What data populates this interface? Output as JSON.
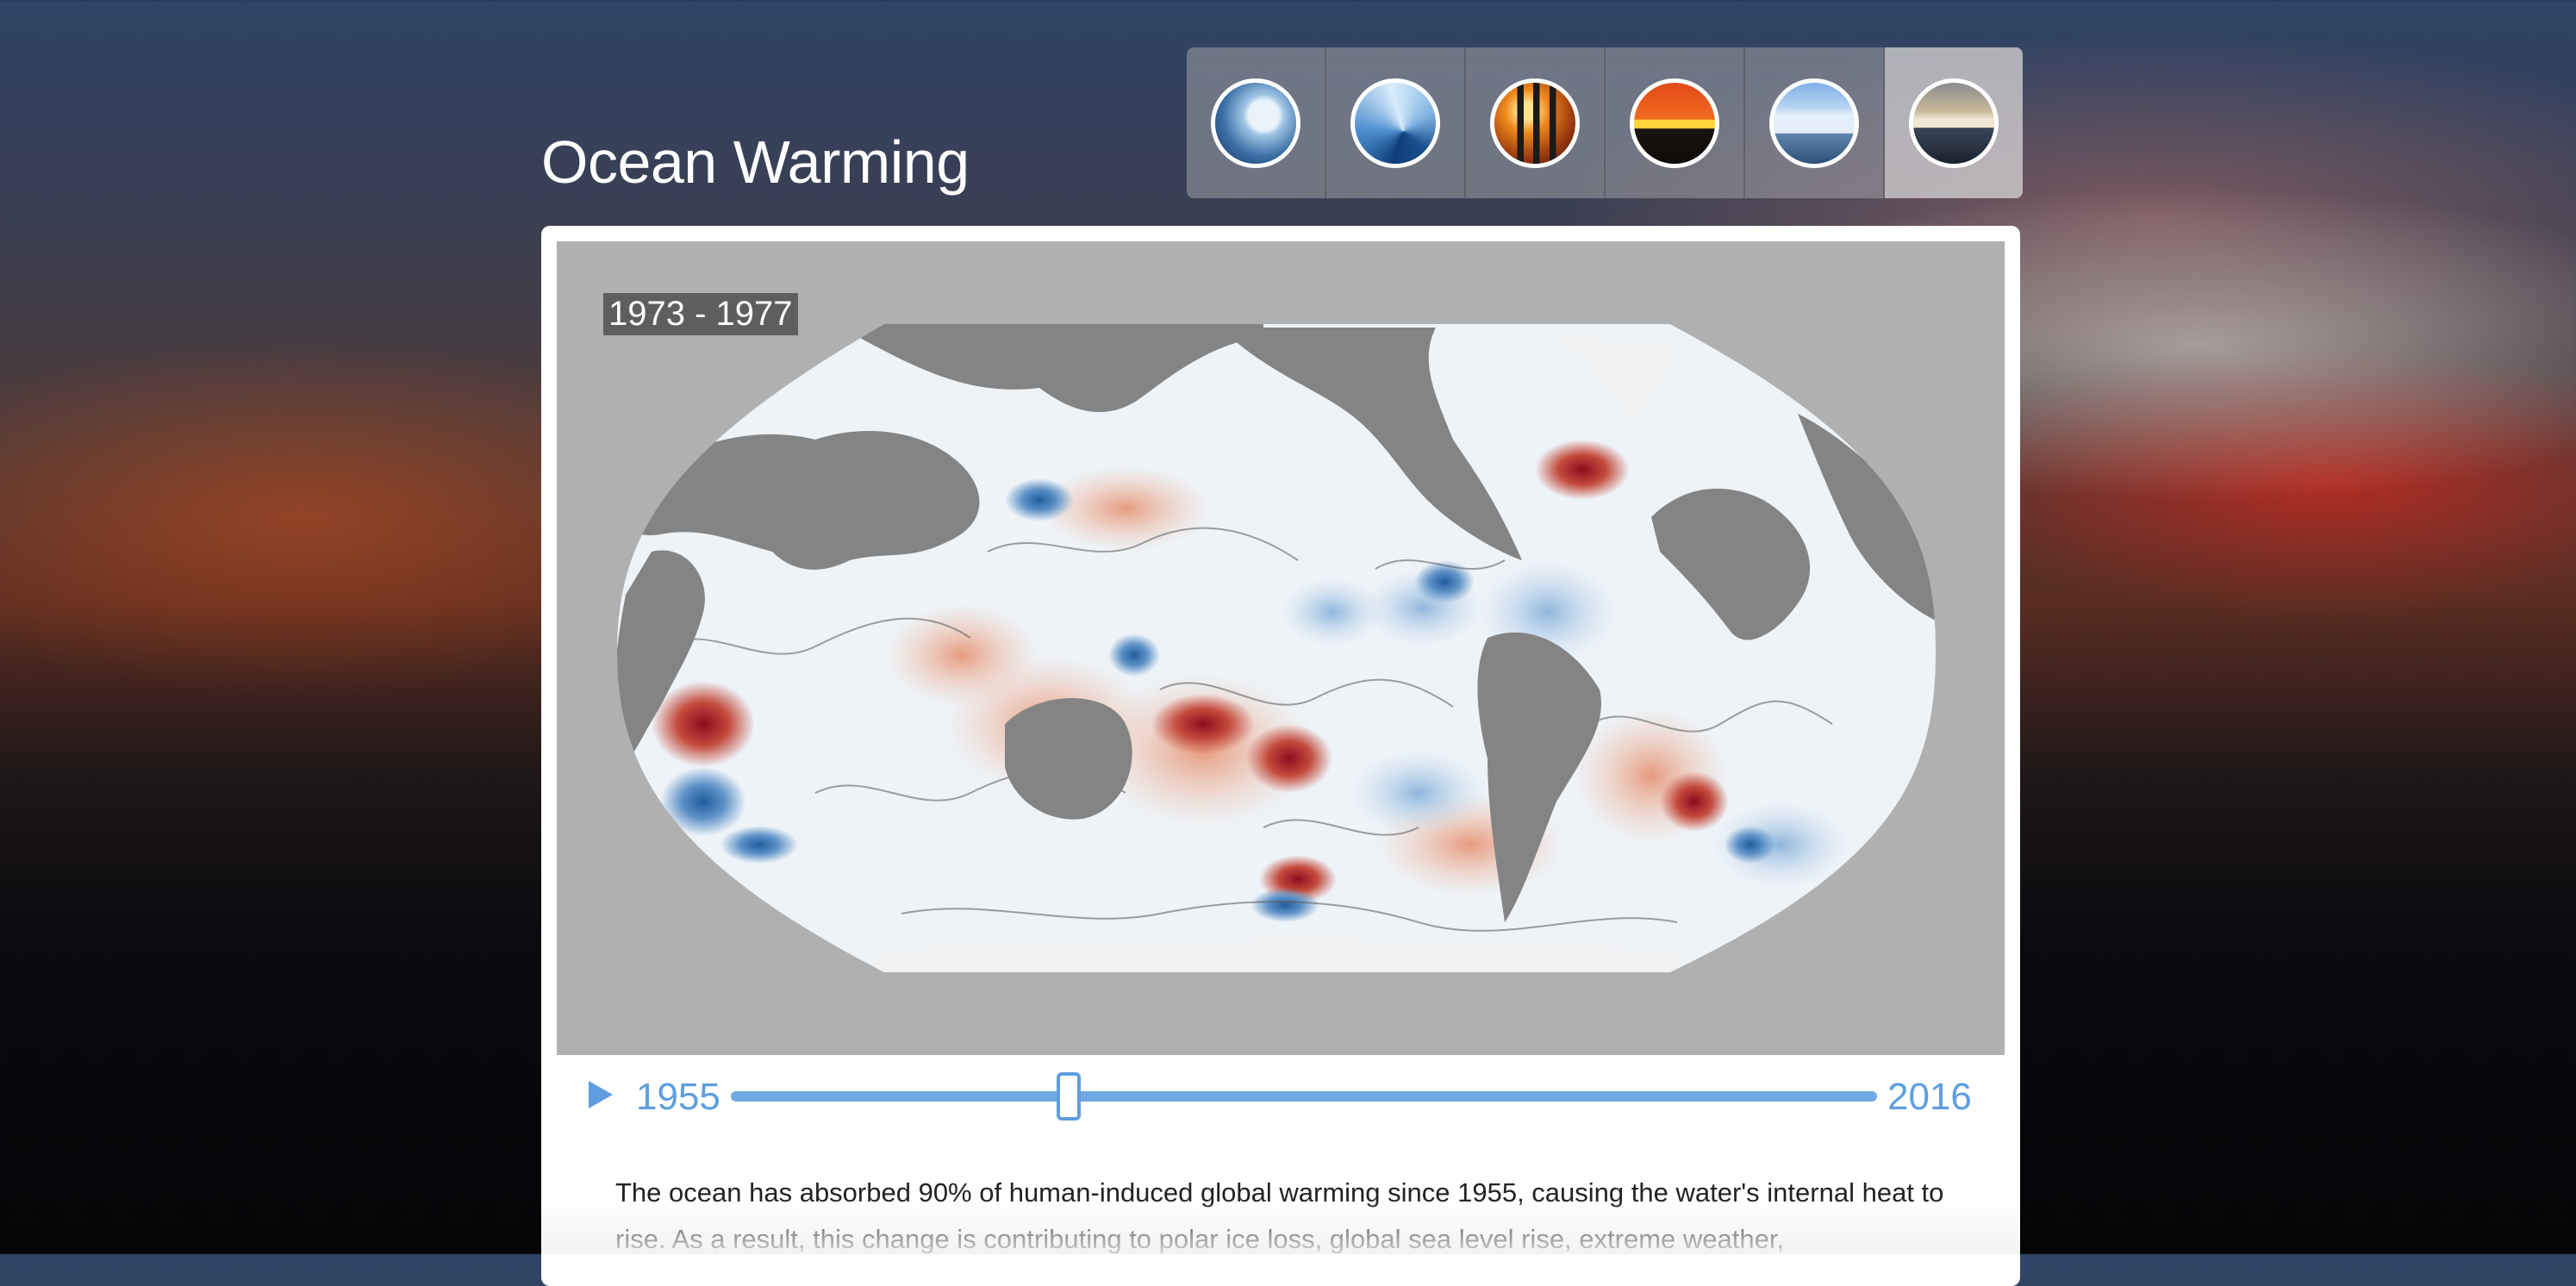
{
  "page": {
    "title": "Ocean Warming"
  },
  "topics": [
    {
      "id": "ice",
      "icon": "glacier-thumbnail",
      "active": false
    },
    {
      "id": "wave",
      "icon": "ocean-wave-thumbnail",
      "active": false
    },
    {
      "id": "emissions",
      "icon": "smokestack-thumbnail",
      "active": false
    },
    {
      "id": "sunset",
      "icon": "sunset-thumbnail",
      "active": false
    },
    {
      "id": "ice-shelf",
      "icon": "ice-shelf-thumbnail",
      "active": false
    },
    {
      "id": "iceberg",
      "icon": "iceberg-thumbnail",
      "active": true
    }
  ],
  "map": {
    "period_label": "1973 - 1977"
  },
  "timeline": {
    "start_year": "1955",
    "end_year": "2016",
    "current_start": 1973,
    "current_end": 1977
  },
  "description": "The ocean has absorbed 90% of human-induced global warming since 1955, causing the water's internal heat to rise. As a result, this change is contributing to polar ice loss, global sea level rise, extreme weather,",
  "colors": {
    "accent": "#5e9ee0",
    "warm": "#b2182b",
    "cool": "#2166ac",
    "land": "#8c8c8c"
  }
}
